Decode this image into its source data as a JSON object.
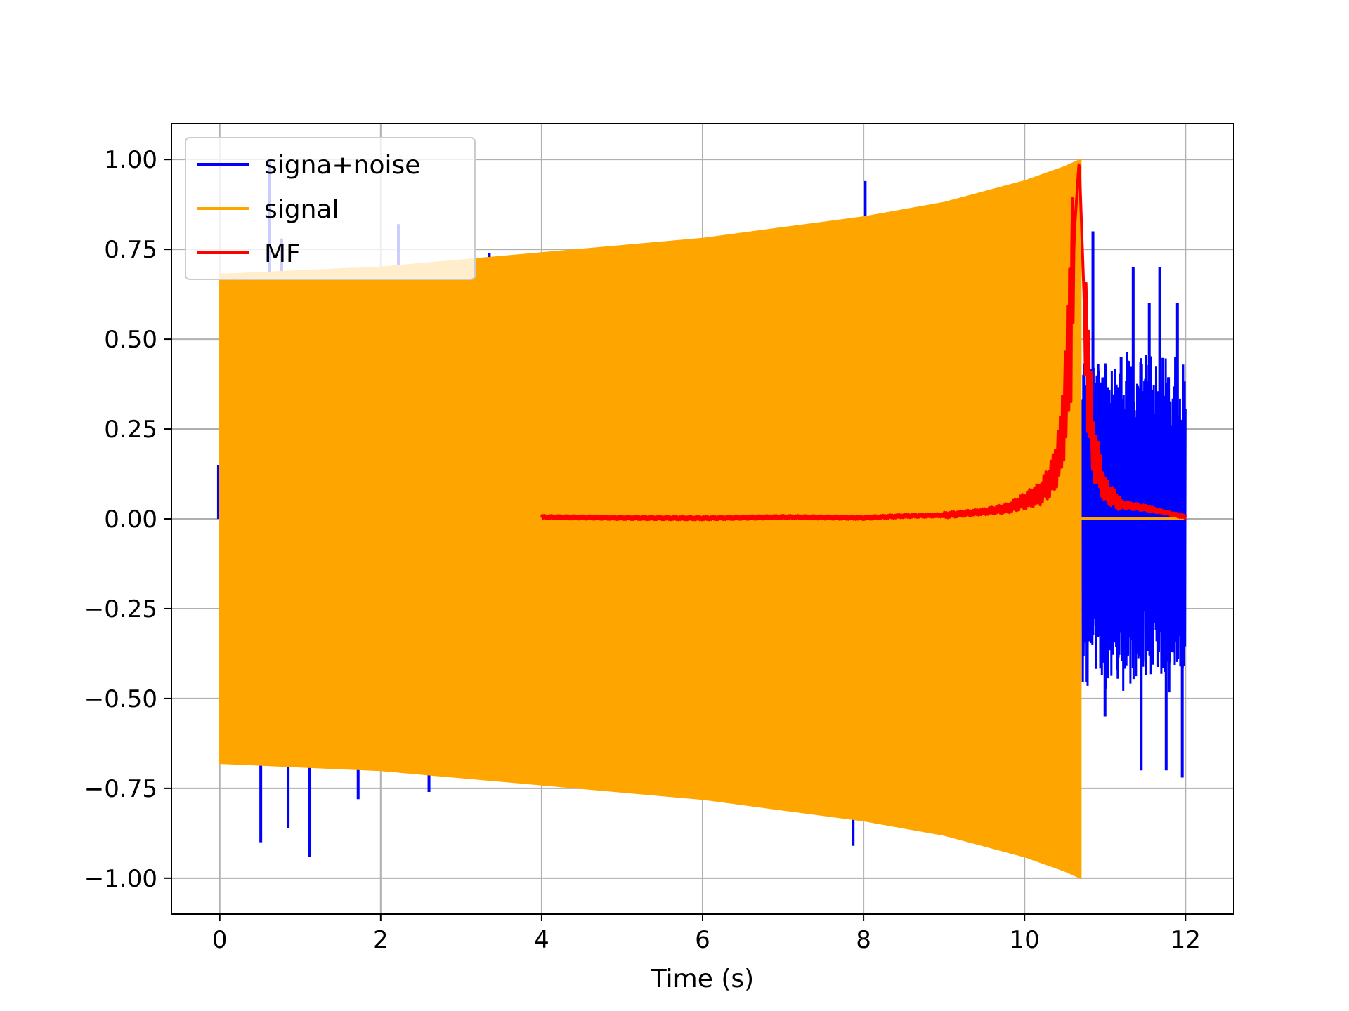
{
  "chart_data": {
    "type": "line",
    "title": "",
    "xlabel": "Time (s)",
    "ylabel": "",
    "xlim": [
      -0.6,
      12.6
    ],
    "ylim": [
      -1.1,
      1.1
    ],
    "x_ticks": [
      0,
      2,
      4,
      6,
      8,
      10,
      12
    ],
    "x_tick_labels": [
      "0",
      "2",
      "4",
      "6",
      "8",
      "10",
      "12"
    ],
    "y_ticks": [
      1.0,
      0.75,
      0.5,
      0.25,
      0.0,
      -0.25,
      -0.5,
      -0.75,
      -1.0
    ],
    "y_tick_labels": [
      "1.00",
      "0.75",
      "0.50",
      "0.25",
      "0.00",
      "−0.25",
      "−0.50",
      "−0.75",
      "−1.00"
    ],
    "grid": true,
    "legend_position": "top-left",
    "series": [
      {
        "name": "signa+noise",
        "color": "#0000ff",
        "kind": "noise-spikes",
        "x_range": [
          0,
          12
        ],
        "spikes_early": [
          {
            "x": 0.51,
            "y": -0.9
          },
          {
            "x": 0.62,
            "y": 1.0
          },
          {
            "x": 0.77,
            "y": 0.78
          },
          {
            "x": 0.85,
            "y": -0.86
          },
          {
            "x": 1.12,
            "y": -0.94
          },
          {
            "x": 1.72,
            "y": -0.78
          },
          {
            "x": 2.22,
            "y": 0.82
          },
          {
            "x": 2.6,
            "y": -0.76
          },
          {
            "x": 3.35,
            "y": 0.74
          },
          {
            "x": 7.87,
            "y": -0.91
          },
          {
            "x": 8.02,
            "y": 0.94
          }
        ],
        "spikes_late": [
          {
            "x": 10.85,
            "y": 0.8
          },
          {
            "x": 11.0,
            "y": -0.55
          },
          {
            "x": 11.2,
            "y": 0.45
          },
          {
            "x": 11.35,
            "y": 0.7
          },
          {
            "x": 11.45,
            "y": -0.7
          },
          {
            "x": 11.55,
            "y": 0.6
          },
          {
            "x": 11.68,
            "y": 0.7
          },
          {
            "x": 11.76,
            "y": -0.7
          },
          {
            "x": 11.9,
            "y": 0.6
          },
          {
            "x": 11.96,
            "y": -0.72
          }
        ]
      },
      {
        "name": "signal",
        "color": "#ffa500",
        "kind": "chirp-envelope",
        "x": [
          0,
          1,
          2,
          3,
          4,
          5,
          6,
          7,
          8,
          9,
          10,
          10.5,
          10.7
        ],
        "upper": [
          0.68,
          0.69,
          0.7,
          0.72,
          0.74,
          0.76,
          0.78,
          0.81,
          0.84,
          0.88,
          0.94,
          0.98,
          1.0
        ],
        "lower": [
          -0.68,
          -0.69,
          -0.7,
          -0.72,
          -0.74,
          -0.76,
          -0.78,
          -0.81,
          -0.84,
          -0.88,
          -0.94,
          -0.98,
          -1.0
        ]
      },
      {
        "name": "MF",
        "color": "#ff0000",
        "kind": "line",
        "x": [
          4.0,
          5.0,
          6.0,
          7.0,
          8.0,
          8.5,
          9.0,
          9.5,
          9.8,
          10.0,
          10.2,
          10.35,
          10.45,
          10.55,
          10.62,
          10.68,
          10.75,
          10.85,
          11.0,
          11.2,
          11.5,
          11.8,
          12.0
        ],
        "y": [
          0.005,
          0.003,
          0.002,
          0.005,
          0.003,
          0.008,
          0.01,
          0.02,
          0.03,
          0.05,
          0.07,
          0.12,
          0.2,
          0.45,
          0.8,
          1.0,
          0.55,
          0.2,
          0.08,
          0.04,
          0.03,
          0.015,
          0.005
        ]
      }
    ]
  }
}
